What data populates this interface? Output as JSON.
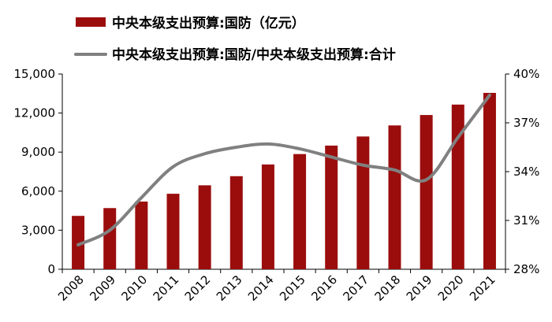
{
  "chart_data": {
    "type": "bar",
    "categories": [
      "2008",
      "2009",
      "2010",
      "2011",
      "2012",
      "2013",
      "2014",
      "2015",
      "2016",
      "2017",
      "2018",
      "2019",
      "2020",
      "2021"
    ],
    "series": [
      {
        "name": "中央本级支出预算:国防（亿元）",
        "type": "bar",
        "axis": "left",
        "color": "#9B0D0D",
        "values": [
          4100,
          4700,
          5200,
          5800,
          6450,
          7150,
          8050,
          8850,
          9500,
          10200,
          11050,
          11850,
          12650,
          13550
        ]
      },
      {
        "name": "中央本级支出预算:国防/中央本级支出预算:合计",
        "type": "line",
        "axis": "right",
        "color": "#808080",
        "values": [
          29.5,
          30.4,
          32.4,
          34.3,
          35.1,
          35.5,
          35.7,
          35.4,
          34.9,
          34.4,
          34.1,
          33.5,
          36.1,
          38.7
        ]
      }
    ],
    "y_left": {
      "ylim": [
        0,
        15000
      ],
      "ticks": [
        "0",
        "3,000",
        "6,000",
        "9,000",
        "12,000",
        "15,000"
      ],
      "tick_values": [
        0,
        3000,
        6000,
        9000,
        12000,
        15000
      ]
    },
    "y_right": {
      "ylim": [
        28,
        40
      ],
      "ticks": [
        "28%",
        "31%",
        "34%",
        "37%",
        "40%"
      ],
      "tick_values": [
        28,
        31,
        34,
        37,
        40
      ]
    },
    "legend": {
      "placement": "top-left"
    },
    "grid": false
  }
}
